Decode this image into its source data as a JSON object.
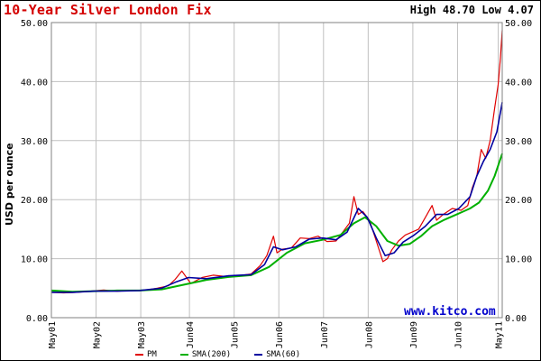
{
  "header": {
    "title": "10-Year Silver London Fix",
    "high_low": "High 48.70 Low 4.07"
  },
  "watermark": "www.kitco.com",
  "colors": {
    "pm": "#e00000",
    "sma200": "#00b000",
    "sma60": "#0000a0",
    "grid": "#c0c0c0",
    "title": "#d40000"
  },
  "chart_data": {
    "type": "line",
    "title": "10-Year Silver London Fix",
    "xlabel": "",
    "ylabel": "USD per ounce",
    "ylim": [
      0,
      50
    ],
    "yticks": [
      "0.00",
      "10.00",
      "20.00",
      "30.00",
      "40.00",
      "50.00"
    ],
    "xlim": [
      2001.33,
      2011.42
    ],
    "xticks": [
      {
        "label": "May01",
        "x": 2001.33
      },
      {
        "label": "May02",
        "x": 2002.33
      },
      {
        "label": "May03",
        "x": 2003.33
      },
      {
        "label": "Jun04",
        "x": 2004.42
      },
      {
        "label": "Jun05",
        "x": 2005.42
      },
      {
        "label": "Jun06",
        "x": 2006.42
      },
      {
        "label": "Jun07",
        "x": 2007.42
      },
      {
        "label": "Jun08",
        "x": 2008.42
      },
      {
        "label": "Jun09",
        "x": 2009.42
      },
      {
        "label": "Jun10",
        "x": 2010.42
      },
      {
        "label": "May11",
        "x": 2011.33
      }
    ],
    "grid": true,
    "legend_position": "bottom",
    "series": [
      {
        "name": "PM",
        "x": [
          2001.33,
          2001.6,
          2001.9,
          2002.2,
          2002.5,
          2002.8,
          2003.1,
          2003.4,
          2003.7,
          2003.95,
          2004.1,
          2004.25,
          2004.45,
          2004.7,
          2004.95,
          2005.2,
          2005.5,
          2005.8,
          2006.0,
          2006.15,
          2006.3,
          2006.38,
          2006.5,
          2006.7,
          2006.9,
          2007.1,
          2007.3,
          2007.5,
          2007.7,
          2007.85,
          2008.0,
          2008.1,
          2008.2,
          2008.3,
          2008.45,
          2008.6,
          2008.75,
          2008.85,
          2008.95,
          2009.1,
          2009.25,
          2009.4,
          2009.55,
          2009.7,
          2009.85,
          2009.95,
          2010.1,
          2010.3,
          2010.5,
          2010.65,
          2010.75,
          2010.85,
          2010.95,
          2011.05,
          2011.15,
          2011.25,
          2011.33,
          2011.38,
          2011.42
        ],
        "values": [
          4.3,
          4.2,
          4.3,
          4.5,
          4.7,
          4.5,
          4.6,
          4.6,
          5.0,
          5.4,
          6.5,
          7.9,
          5.8,
          6.8,
          7.2,
          7.0,
          7.1,
          7.4,
          8.8,
          10.5,
          13.8,
          11.0,
          11.6,
          11.8,
          13.5,
          13.4,
          13.8,
          12.9,
          13.0,
          14.5,
          16.0,
          20.5,
          17.5,
          18.0,
          16.5,
          13.0,
          9.5,
          10.0,
          11.5,
          13.0,
          14.0,
          14.5,
          15.0,
          17.0,
          19.0,
          16.5,
          17.5,
          18.5,
          18.2,
          19.0,
          22.0,
          24.0,
          28.5,
          27.0,
          30.0,
          35.5,
          39.5,
          44.0,
          48.7
        ]
      },
      {
        "name": "SMA(200)",
        "x": [
          2001.33,
          2001.8,
          2002.3,
          2002.8,
          2003.3,
          2003.8,
          2004.3,
          2004.8,
          2005.3,
          2005.8,
          2006.2,
          2006.6,
          2007.0,
          2007.4,
          2007.8,
          2008.1,
          2008.35,
          2008.6,
          2008.85,
          2009.1,
          2009.35,
          2009.6,
          2009.85,
          2010.1,
          2010.4,
          2010.7,
          2010.9,
          2011.1,
          2011.25,
          2011.42
        ],
        "values": [
          4.6,
          4.4,
          4.5,
          4.6,
          4.6,
          4.8,
          5.6,
          6.4,
          6.9,
          7.2,
          8.6,
          11.0,
          12.6,
          13.2,
          14.0,
          16.0,
          17.0,
          15.5,
          13.0,
          12.2,
          12.5,
          13.8,
          15.5,
          16.5,
          17.5,
          18.5,
          19.5,
          21.5,
          24.0,
          27.8
        ]
      },
      {
        "name": "SMA(60)",
        "x": [
          2001.33,
          2001.8,
          2002.3,
          2002.8,
          2003.3,
          2003.8,
          2004.1,
          2004.4,
          2004.8,
          2005.3,
          2005.8,
          2006.1,
          2006.3,
          2006.5,
          2006.8,
          2007.1,
          2007.4,
          2007.7,
          2007.95,
          2008.2,
          2008.4,
          2008.6,
          2008.8,
          2009.0,
          2009.2,
          2009.45,
          2009.7,
          2009.95,
          2010.2,
          2010.45,
          2010.7,
          2010.85,
          2011.0,
          2011.15,
          2011.3,
          2011.42
        ],
        "values": [
          4.3,
          4.3,
          4.5,
          4.5,
          4.6,
          5.0,
          6.0,
          6.8,
          6.6,
          7.1,
          7.3,
          9.0,
          12.0,
          11.5,
          12.0,
          13.3,
          13.5,
          13.2,
          14.5,
          18.5,
          17.0,
          13.5,
          10.5,
          11.0,
          12.8,
          14.0,
          15.5,
          17.5,
          17.5,
          18.5,
          20.5,
          24.0,
          26.5,
          28.5,
          31.5,
          36.5
        ]
      }
    ]
  }
}
